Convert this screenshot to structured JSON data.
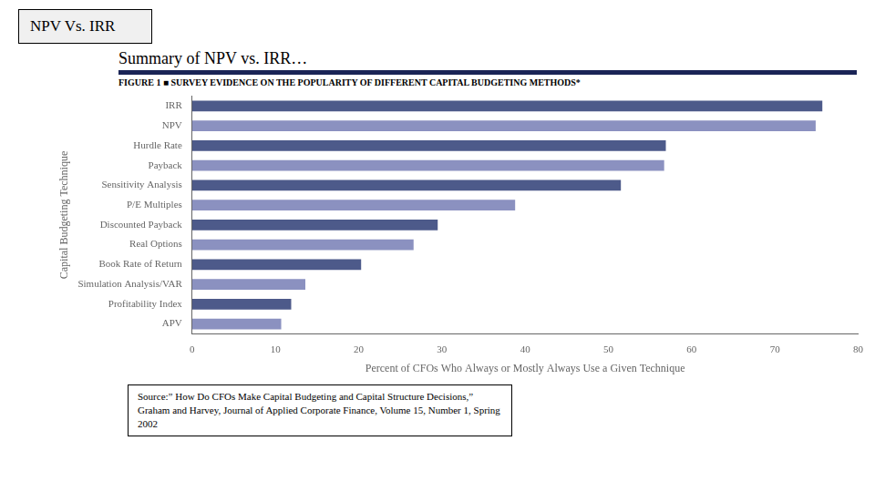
{
  "chart_data": {
    "type": "bar",
    "orientation": "horizontal",
    "title": "NPV Vs. IRR",
    "subtitle": "Summary of NPV vs. IRR…",
    "annotations": [
      "FIGURE 1 ■  SURVEY EVIDENCE ON THE POPULARITY OF DIFFERENT CAPITAL BUDGETING METHODS*",
      "Source:” How Do CFOs Make Capital Budgeting and Capital Structure Decisions,” Graham and Harvey, Journal of Applied Corporate Finance, Volume 15, Number 1, Spring 2002"
    ],
    "categories": [
      "IRR",
      "NPV",
      "Hurdle Rate",
      "Payback",
      "Sensitivity Analysis",
      "P/E Multiples",
      "Discounted Payback",
      "Real Options",
      "Book Rate of Return",
      "Simulation Analysis/VAR",
      "Profitability Index",
      "APV"
    ],
    "values": [
      75.7,
      74.9,
      56.9,
      56.7,
      51.5,
      38.8,
      29.5,
      26.6,
      20.3,
      13.6,
      11.9,
      10.7
    ],
    "colors": [
      "#4d5a8a",
      "#8b91c0",
      "#4d5a8a",
      "#8b91c0",
      "#4d5a8a",
      "#8b91c0",
      "#4d5a8a",
      "#8b91c0",
      "#4d5a8a",
      "#8b91c0",
      "#4d5a8a",
      "#8b91c0"
    ],
    "xlabel": "Percent of CFOs Who Always or Mostly Always Use a Given Technique",
    "ylabel": "Capital Budgeting Technique",
    "xlim": [
      0,
      80
    ],
    "xticks": [
      0,
      10,
      20,
      30,
      40,
      50,
      60,
      70,
      80
    ],
    "grid": false
  }
}
